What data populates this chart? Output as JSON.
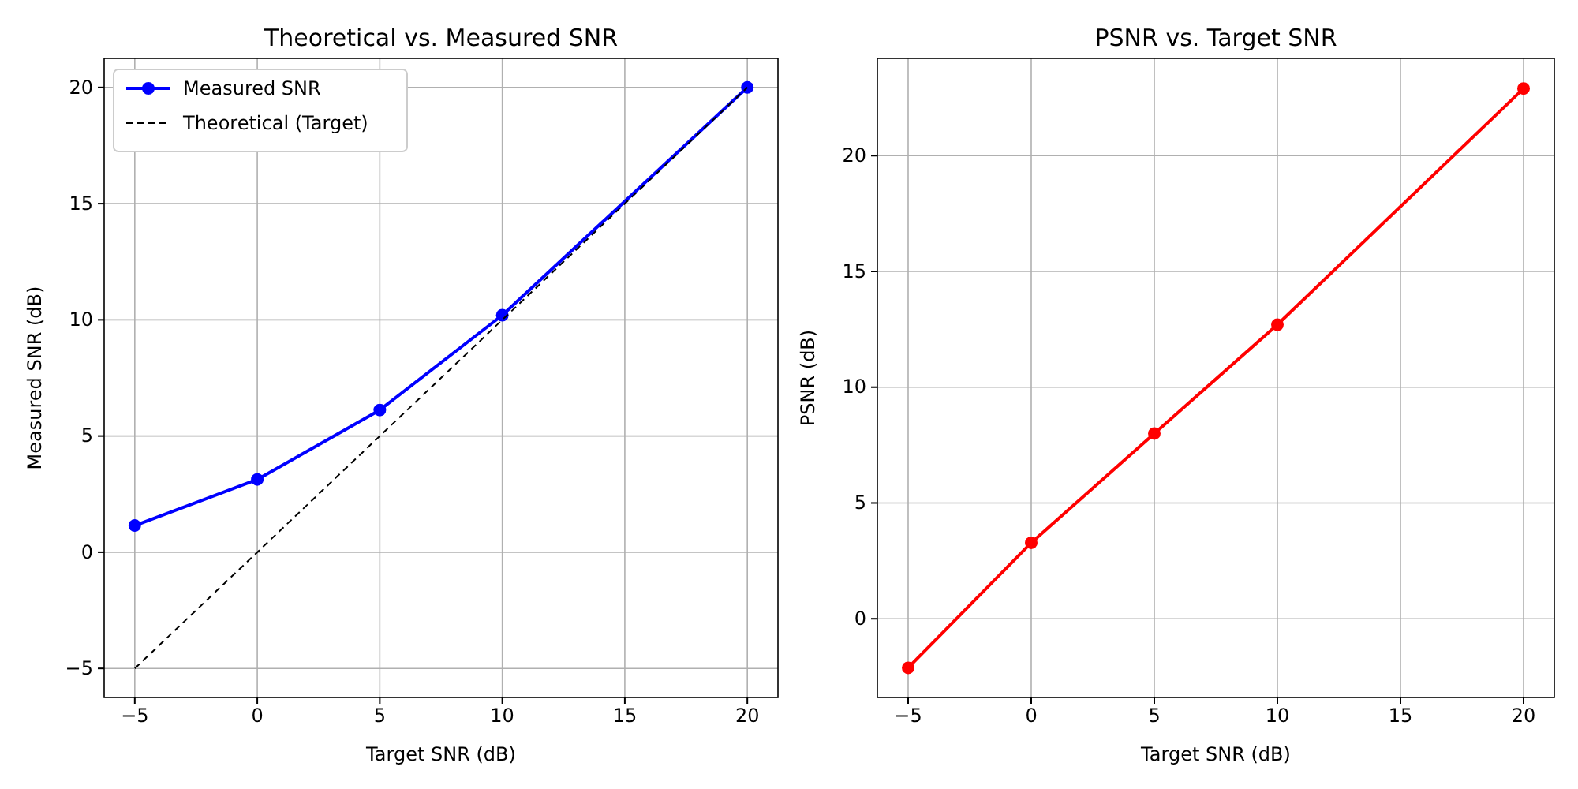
{
  "chart_data": [
    {
      "type": "line",
      "title": "Theoretical vs. Measured SNR",
      "xlabel": "Target SNR (dB)",
      "ylabel": "Measured SNR (dB)",
      "x": [
        -5,
        0,
        5,
        10,
        20
      ],
      "series": [
        {
          "name": "Measured SNR",
          "color": "#0000ff",
          "values": [
            1.15,
            3.13,
            6.12,
            10.2,
            20.0
          ],
          "marker": "circle",
          "line_style": "solid"
        },
        {
          "name": "Theoretical (Target)",
          "color": "#000000",
          "values": [
            -5,
            0,
            5,
            10,
            20
          ],
          "marker": "none",
          "line_style": "dashed"
        }
      ],
      "xlim": [
        -6.25,
        21.25
      ],
      "ylim": [
        -6.25,
        21.25
      ],
      "xticks": [
        -5,
        0,
        5,
        10,
        15,
        20
      ],
      "yticks": [
        -5,
        0,
        5,
        10,
        15,
        20
      ],
      "grid": true,
      "legend": "top left"
    },
    {
      "type": "line",
      "title": "PSNR vs. Target SNR",
      "xlabel": "Target SNR (dB)",
      "ylabel": "PSNR (dB)",
      "x": [
        -5,
        0,
        5,
        10,
        20
      ],
      "series": [
        {
          "color": "#ff0000",
          "values": [
            -2.12,
            3.28,
            8.0,
            12.7,
            22.9
          ],
          "marker": "circle",
          "line_style": "solid"
        }
      ],
      "xlim": [
        -6.25,
        21.25
      ],
      "ylim": [
        -3.4,
        24.2
      ],
      "xticks": [
        -5,
        0,
        5,
        10,
        15,
        20
      ],
      "yticks": [
        0,
        5,
        10,
        15,
        20
      ],
      "grid": true
    }
  ]
}
